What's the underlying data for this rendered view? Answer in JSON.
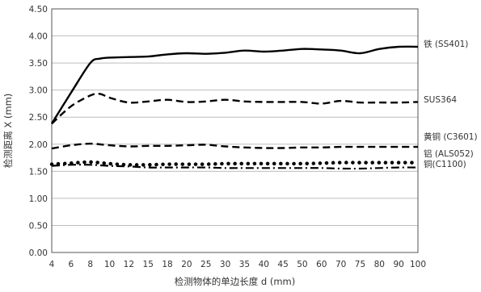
{
  "chart_data": {
    "type": "line",
    "title": "",
    "xlabel": "检测物体的单边长度 d (mm)",
    "ylabel": "检测距离 X (mm)",
    "x_categories": [
      "4",
      "6",
      "8",
      "10",
      "12",
      "15",
      "18",
      "20",
      "25",
      "30",
      "35",
      "40",
      "45",
      "50",
      "60",
      "70",
      "75",
      "80",
      "90",
      "100"
    ],
    "y_ticks": [
      "0.00",
      "0.50",
      "1.00",
      "1.50",
      "2.00",
      "2.50",
      "3.00",
      "3.50",
      "4.00",
      "4.50"
    ],
    "ylim": [
      0,
      4.5
    ],
    "grid": "horizontal",
    "legend": "labels at right end of each line",
    "series": [
      {
        "name": "铁 (SS401)",
        "style": "solid",
        "color": "#000000",
        "x": [
          4,
          6,
          8,
          9,
          10,
          12,
          15,
          18,
          20,
          25,
          30,
          35,
          40,
          45,
          50,
          60,
          70,
          75,
          80,
          90,
          100
        ],
        "y": [
          2.38,
          2.95,
          3.5,
          3.58,
          3.6,
          3.61,
          3.62,
          3.66,
          3.68,
          3.67,
          3.69,
          3.73,
          3.71,
          3.73,
          3.76,
          3.75,
          3.73,
          3.68,
          3.76,
          3.8,
          3.8
        ]
      },
      {
        "name": "SUS364",
        "style": "dashed",
        "color": "#000000",
        "x": [
          4,
          6,
          8,
          9,
          10,
          12,
          15,
          18,
          20,
          25,
          30,
          35,
          40,
          45,
          50,
          60,
          70,
          75,
          80,
          90,
          100
        ],
        "y": [
          2.38,
          2.7,
          2.9,
          2.93,
          2.86,
          2.77,
          2.79,
          2.82,
          2.78,
          2.79,
          2.82,
          2.79,
          2.78,
          2.78,
          2.78,
          2.75,
          2.8,
          2.77,
          2.77,
          2.77,
          2.78
        ]
      },
      {
        "name": "黄铜 (C3601)",
        "style": "dashed",
        "color": "#000000",
        "x": [
          4,
          6,
          8,
          10,
          12,
          15,
          18,
          20,
          25,
          30,
          35,
          40,
          45,
          50,
          60,
          70,
          75,
          80,
          90,
          100
        ],
        "y": [
          1.92,
          1.98,
          2.01,
          1.98,
          1.96,
          1.97,
          1.97,
          1.98,
          1.99,
          1.96,
          1.94,
          1.93,
          1.93,
          1.94,
          1.94,
          1.95,
          1.95,
          1.95,
          1.95,
          1.95
        ]
      },
      {
        "name": "铝 (ALS052)",
        "style": "dotted",
        "color": "#000000",
        "x": [
          4,
          6,
          8,
          10,
          12,
          15,
          18,
          20,
          25,
          30,
          35,
          40,
          45,
          50,
          60,
          70,
          75,
          80,
          90,
          100
        ],
        "y": [
          1.63,
          1.65,
          1.67,
          1.64,
          1.62,
          1.62,
          1.63,
          1.63,
          1.63,
          1.64,
          1.64,
          1.64,
          1.64,
          1.64,
          1.65,
          1.66,
          1.66,
          1.66,
          1.66,
          1.66
        ]
      },
      {
        "name": "铜(C1100)",
        "style": "dashdot",
        "color": "#000000",
        "x": [
          4,
          6,
          8,
          10,
          12,
          15,
          18,
          20,
          25,
          30,
          35,
          40,
          45,
          50,
          60,
          70,
          75,
          80,
          90,
          100
        ],
        "y": [
          1.6,
          1.62,
          1.62,
          1.6,
          1.59,
          1.57,
          1.57,
          1.57,
          1.57,
          1.56,
          1.56,
          1.56,
          1.56,
          1.56,
          1.56,
          1.55,
          1.55,
          1.56,
          1.57,
          1.57
        ]
      }
    ]
  }
}
